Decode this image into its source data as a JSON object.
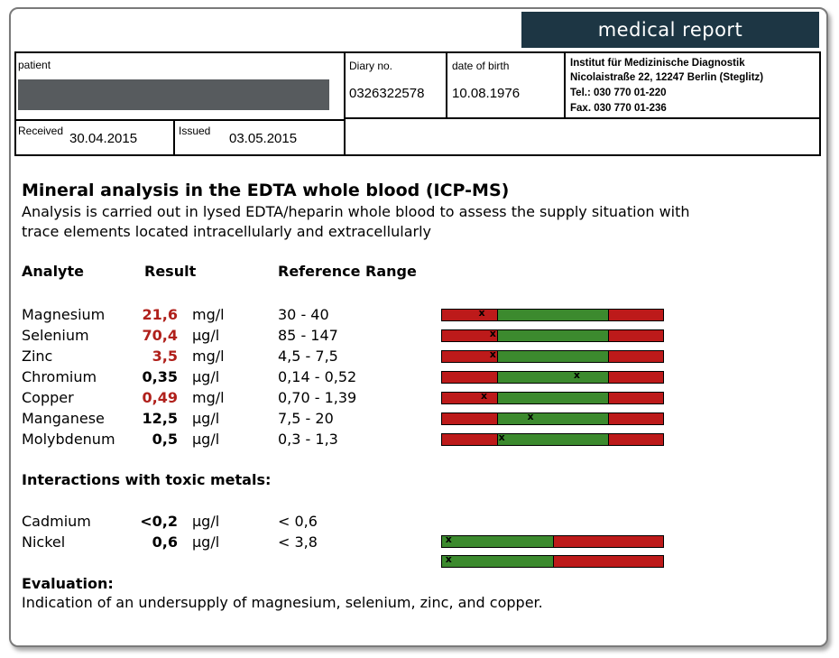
{
  "report_title": "medical report",
  "header": {
    "patient_label": "patient",
    "diary_label": "Diary no.",
    "diary_value": "0326322578",
    "dob_label": "date of birth",
    "dob_value": "10.08.1976",
    "institute": {
      "line1": "Institut für Medizinische Diagnostik",
      "line2": "Nicolaistraße 22, 12247 Berlin (Steglitz)",
      "line3": "Tel.: 030 770 01-220",
      "line4": "Fax. 030 770 01-236"
    },
    "received_label": "Received",
    "received_value": "30.04.2015",
    "issued_label": "Issued",
    "issued_value": "03.05.2015"
  },
  "title": "Mineral analysis in the EDTA whole blood (ICP-MS)",
  "description_line1": "Analysis is carried out in lysed EDTA/heparin whole blood to assess the supply situation with",
  "description_line2": "trace elements located intracellularly and extracellularly",
  "columns": {
    "analyte": "Analyte",
    "result": "Result",
    "reference": "Reference Range"
  },
  "analytes": [
    {
      "name": "Magnesium",
      "result": "21,6",
      "unit": "mg/l",
      "range": "30 - 40",
      "low": true,
      "marker": 0.18
    },
    {
      "name": "Selenium",
      "result": "70,4",
      "unit": "µg/l",
      "range": "85 - 147",
      "low": true,
      "marker": 0.23
    },
    {
      "name": "Zinc",
      "result": "3,5",
      "unit": "mg/l",
      "range": "4,5 - 7,5",
      "low": true,
      "marker": 0.23
    },
    {
      "name": "Chromium",
      "result": "0,35",
      "unit": "µg/l",
      "range": "0,14 - 0,52",
      "low": false,
      "marker": 0.61
    },
    {
      "name": "Copper",
      "result": "0,49",
      "unit": "mg/l",
      "range": "0,70 - 1,39",
      "low": true,
      "marker": 0.19
    },
    {
      "name": "Manganese",
      "result": "12,5",
      "unit": "µg/l",
      "range": "7,5 - 20",
      "low": false,
      "marker": 0.4
    },
    {
      "name": "Molybdenum",
      "result": "0,5",
      "unit": "µg/l",
      "range": "0,3 - 1,3",
      "low": false,
      "marker": 0.27
    }
  ],
  "toxic_heading": "Interactions with toxic metals:",
  "toxic": [
    {
      "name": "Cadmium",
      "result": "<0,2",
      "unit": "µg/l",
      "range": "< 0,6",
      "marker": 0.03
    },
    {
      "name": "Nickel",
      "result": "0,6",
      "unit": "µg/l",
      "range": "< 3,8",
      "marker": 0.03
    }
  ],
  "evaluation_heading": "Evaluation:",
  "evaluation_text": "Indication of an undersupply of magnesium, selenium, zinc, and copper.",
  "colors": {
    "low_value": "#b0201b",
    "bar_red": "#bd1a1a",
    "bar_green": "#3c8a2e",
    "title_bar": "#1d3644"
  }
}
